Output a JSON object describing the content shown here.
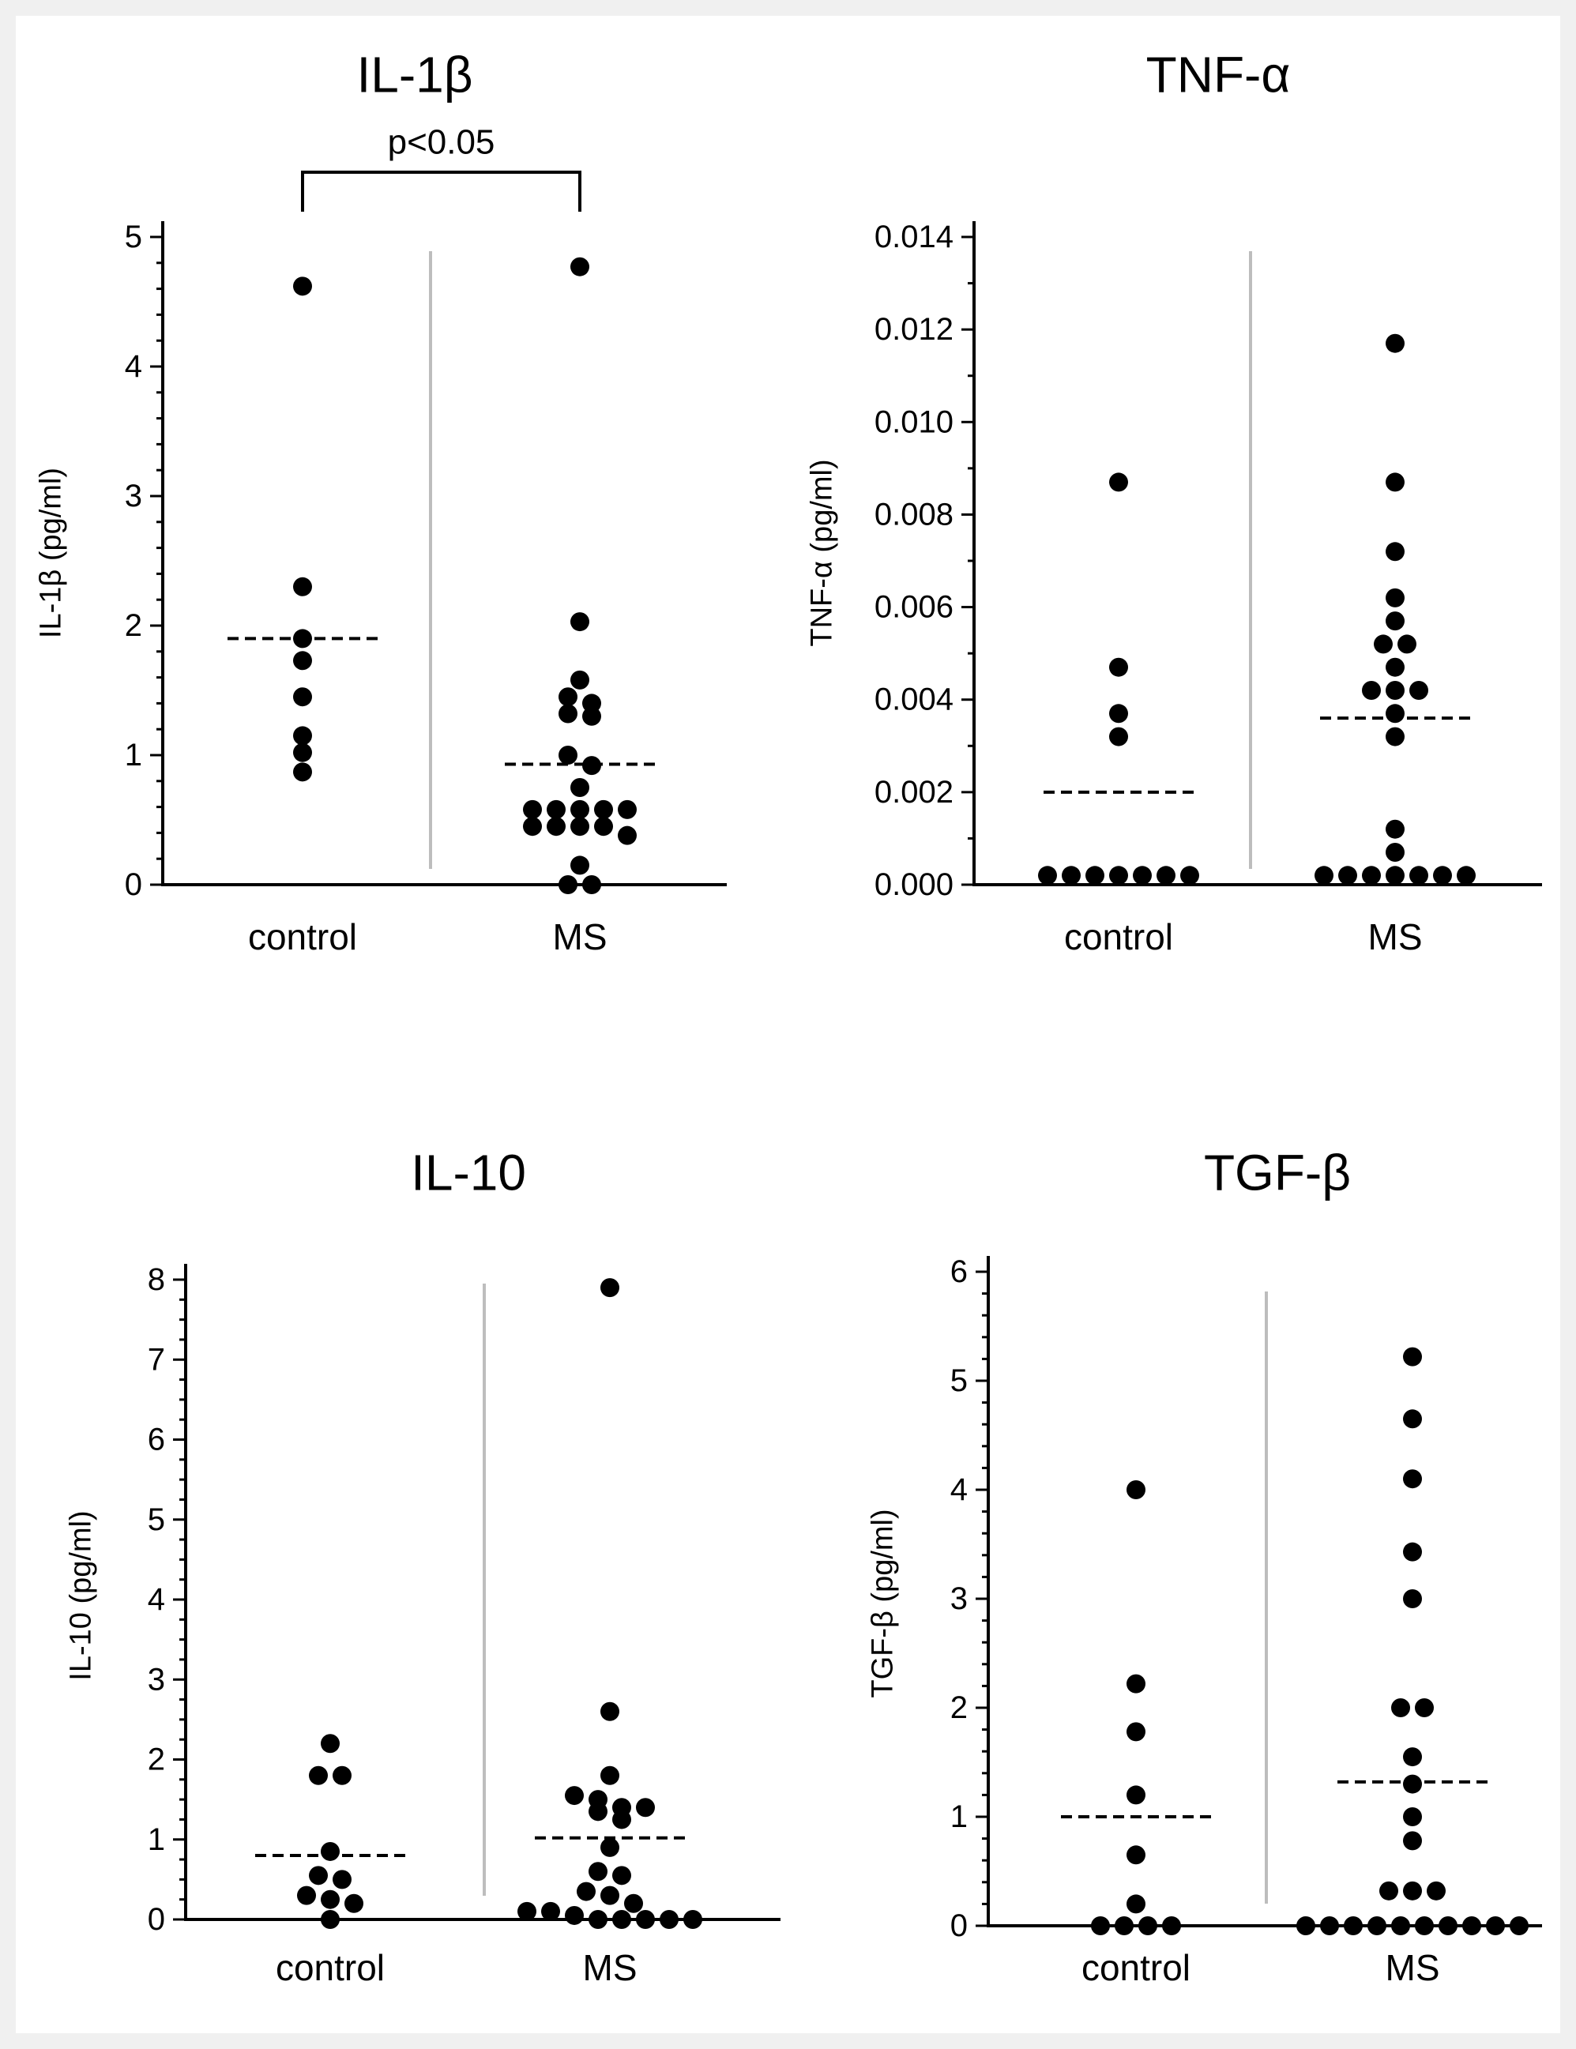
{
  "chart_data": [
    {
      "type": "scatter",
      "title": "IL-1β",
      "ylabel": "IL-1β (pg/ml)",
      "xlabel": "",
      "categories": [
        "control",
        "MS"
      ],
      "ylim": [
        0,
        5
      ],
      "yticks": [
        "0",
        "1",
        "2",
        "3",
        "4",
        "5"
      ],
      "tick_values": [
        0,
        1,
        2,
        3,
        4,
        5
      ],
      "minor_step": 0.2,
      "grid": false,
      "groups": [
        {
          "name": "control",
          "values": [
            4.62,
            2.3,
            1.9,
            1.73,
            1.45,
            1.15,
            1.02,
            0.87
          ],
          "mean": 1.9
        },
        {
          "name": "MS",
          "values": [
            4.77,
            2.03,
            1.58,
            1.45,
            1.4,
            1.32,
            1.3,
            1.0,
            0.92,
            0.75,
            0.58,
            0.58,
            0.58,
            0.58,
            0.58,
            0.45,
            0.45,
            0.45,
            0.45,
            0.38,
            0.15,
            0.0,
            0.0
          ],
          "mean": 0.93
        }
      ],
      "annotation": {
        "text": "p<0.05",
        "between": [
          "control",
          "MS"
        ]
      }
    },
    {
      "type": "scatter",
      "title": "TNF-α",
      "ylabel": "TNF-α (pg/ml)",
      "xlabel": "",
      "categories": [
        "control",
        "MS"
      ],
      "ylim": [
        0,
        0.015
      ],
      "yticks": [
        "0.000",
        "0.002",
        "0.004",
        "0.006",
        "0.008",
        "0.010",
        "0.012",
        "0.014"
      ],
      "tick_values": [
        0,
        0.002,
        0.004,
        0.006,
        0.008,
        0.01,
        0.012,
        0.014
      ],
      "minor_step": 0.001,
      "grid": false,
      "groups": [
        {
          "name": "control",
          "values": [
            0.0087,
            0.0047,
            0.0037,
            0.0032,
            0.0002,
            0.0002,
            0.0002,
            0.0002,
            0.0002,
            0.0002,
            0.0002
          ],
          "mean": 0.002
        },
        {
          "name": "MS",
          "values": [
            0.0117,
            0.0087,
            0.0072,
            0.0062,
            0.0057,
            0.0052,
            0.0052,
            0.0047,
            0.0042,
            0.0042,
            0.0042,
            0.0037,
            0.0032,
            0.0012,
            0.0007,
            0.0002,
            0.0002,
            0.0002,
            0.0002,
            0.0002,
            0.0002,
            0.0002
          ],
          "mean": 0.0036
        }
      ]
    },
    {
      "type": "scatter",
      "title": "IL-10",
      "ylabel": "IL-10 (pg/ml)",
      "xlabel": "",
      "categories": [
        "control",
        "MS"
      ],
      "ylim": [
        0,
        8
      ],
      "yticks": [
        "0",
        "1",
        "2",
        "3",
        "4",
        "5",
        "6",
        "7",
        "8"
      ],
      "tick_values": [
        0,
        1,
        2,
        3,
        4,
        5,
        6,
        7,
        8
      ],
      "minor_step": 0.25,
      "grid": false,
      "groups": [
        {
          "name": "control",
          "values": [
            2.2,
            1.8,
            1.8,
            0.85,
            0.55,
            0.5,
            0.3,
            0.25,
            0.2,
            0.0
          ],
          "mean": 0.8
        },
        {
          "name": "MS",
          "values": [
            7.9,
            2.6,
            1.8,
            1.55,
            1.5,
            1.4,
            1.4,
            1.35,
            1.25,
            0.9,
            0.6,
            0.55,
            0.35,
            0.3,
            0.2,
            0.1,
            0.1,
            0.05,
            0.0,
            0.0,
            0.0,
            0.0,
            0.0
          ],
          "mean": 1.02
        }
      ]
    },
    {
      "type": "scatter",
      "title": "TGF-β",
      "ylabel": "TGF-β (pg/ml)",
      "xlabel": "",
      "categories": [
        "control",
        "MS"
      ],
      "ylim": [
        0,
        6
      ],
      "yticks": [
        "0",
        "1",
        "2",
        "3",
        "4",
        "5",
        "6"
      ],
      "tick_values": [
        0,
        1,
        2,
        3,
        4,
        5,
        6
      ],
      "minor_step": 0.2,
      "grid": false,
      "groups": [
        {
          "name": "control",
          "values": [
            4.0,
            2.22,
            1.78,
            1.2,
            0.65,
            0.2,
            0.0,
            0.0,
            0.0,
            0.0
          ],
          "mean": 1.0
        },
        {
          "name": "MS",
          "values": [
            5.22,
            4.65,
            4.1,
            3.43,
            3.0,
            2.0,
            2.0,
            1.55,
            1.3,
            1.0,
            0.78,
            0.32,
            0.32,
            0.32,
            0.0,
            0.0,
            0.0,
            0.0,
            0.0,
            0.0,
            0.0,
            0.0,
            0.0,
            0.0
          ],
          "mean": 1.32
        }
      ]
    }
  ]
}
